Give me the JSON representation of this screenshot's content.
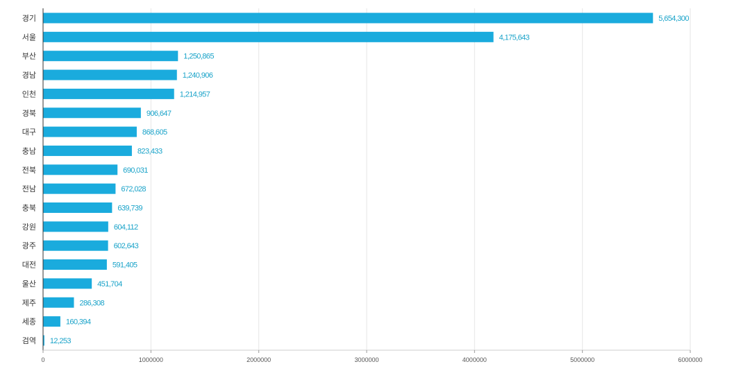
{
  "chart_data": {
    "type": "bar",
    "orientation": "horizontal",
    "categories": [
      "경기",
      "서울",
      "부산",
      "경남",
      "인천",
      "경북",
      "대구",
      "충남",
      "전북",
      "전남",
      "충북",
      "강원",
      "광주",
      "대전",
      "울산",
      "제주",
      "세종",
      "검역"
    ],
    "values": [
      5654300,
      4175643,
      1250865,
      1240906,
      1214957,
      906647,
      868605,
      823433,
      690031,
      672028,
      639739,
      604112,
      602643,
      591405,
      451704,
      286308,
      160394,
      12253
    ],
    "value_labels": [
      "5,654,300",
      "4,175,643",
      "1,250,865",
      "1,240,906",
      "1,214,957",
      "906,647",
      "868,605",
      "823,433",
      "690,031",
      "672,028",
      "639,739",
      "604,112",
      "602,643",
      "591,405",
      "451,704",
      "286,308",
      "160,394",
      "12,253"
    ],
    "xticks": [
      0,
      1000000,
      2000000,
      3000000,
      4000000,
      5000000,
      6000000
    ],
    "xtick_labels": [
      "0",
      "1000000",
      "2000000",
      "3000000",
      "4000000",
      "5000000",
      "6000000"
    ],
    "xlim": [
      0,
      6000000
    ],
    "grid": true,
    "bar_color": "#1aabdd",
    "label_color": "#1aa3c9"
  }
}
